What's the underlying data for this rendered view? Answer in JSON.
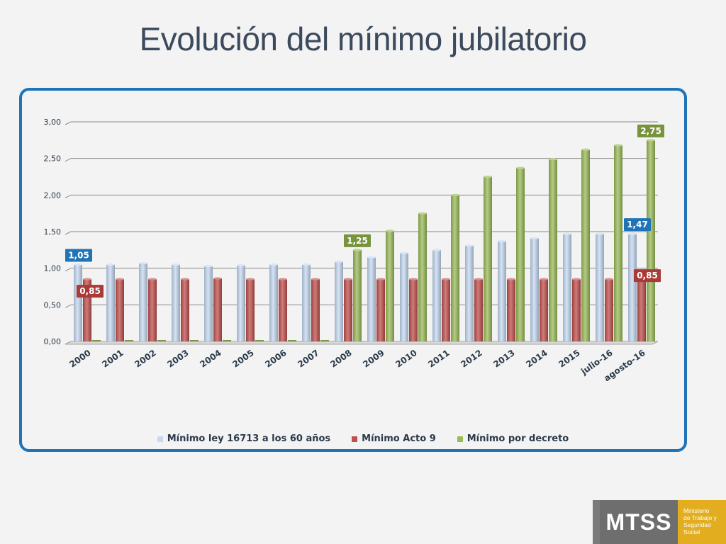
{
  "slide": {
    "title": "Evolución del mínimo jubilatorio"
  },
  "chart_data": {
    "type": "bar",
    "categories": [
      "2000",
      "2001",
      "2002",
      "2003",
      "2004",
      "2005",
      "2006",
      "2007",
      "2008",
      "2009",
      "2010",
      "2011",
      "2012",
      "2013",
      "2014",
      "2015",
      "julio-16",
      "agosto-16"
    ],
    "series": [
      {
        "name": "Mínimo ley 16713 a los 60 años",
        "color": "#c6d9f1",
        "values": [
          1.05,
          1.05,
          1.07,
          1.05,
          1.03,
          1.04,
          1.05,
          1.05,
          1.09,
          1.15,
          1.21,
          1.25,
          1.31,
          1.37,
          1.41,
          1.47,
          1.47,
          1.47
        ]
      },
      {
        "name": "Mínimo Acto 9",
        "color": "#c0504d",
        "values": [
          0.85,
          0.85,
          0.85,
          0.85,
          0.86,
          0.85,
          0.85,
          0.85,
          0.85,
          0.85,
          0.85,
          0.85,
          0.85,
          0.85,
          0.85,
          0.85,
          0.85,
          0.85
        ]
      },
      {
        "name": "Mínimo por decreto",
        "color": "#9bbb59",
        "values": [
          0,
          0,
          0,
          0,
          0,
          0,
          0,
          0,
          1.25,
          1.51,
          1.75,
          2.0,
          2.25,
          2.37,
          2.49,
          2.62,
          2.68,
          2.75
        ]
      }
    ],
    "ylim": [
      0,
      3
    ],
    "yticks": [
      "0,00",
      "0,50",
      "1,00",
      "1,50",
      "2,00",
      "2,50",
      "3,00"
    ],
    "grid": true,
    "legend_position": "bottom",
    "annotations": [
      {
        "text": "1,05",
        "series": 0,
        "category": 0,
        "color": "#1f73b7"
      },
      {
        "text": "0,85",
        "series": 1,
        "category": 0,
        "color": "#a93a36"
      },
      {
        "text": "1,25",
        "series": 2,
        "category": 8,
        "color": "#77933c"
      },
      {
        "text": "2,75",
        "series": 2,
        "category": 17,
        "color": "#77933c"
      },
      {
        "text": "1,47",
        "series": 0,
        "category": 17,
        "color": "#1f73b7"
      },
      {
        "text": "0,85",
        "series": 1,
        "category": 17,
        "color": "#a93a36"
      }
    ]
  },
  "logo": {
    "acronym": "MTSS",
    "lines": [
      "Ministerio",
      "de Trabajo y",
      "Seguridad",
      "Social"
    ]
  }
}
